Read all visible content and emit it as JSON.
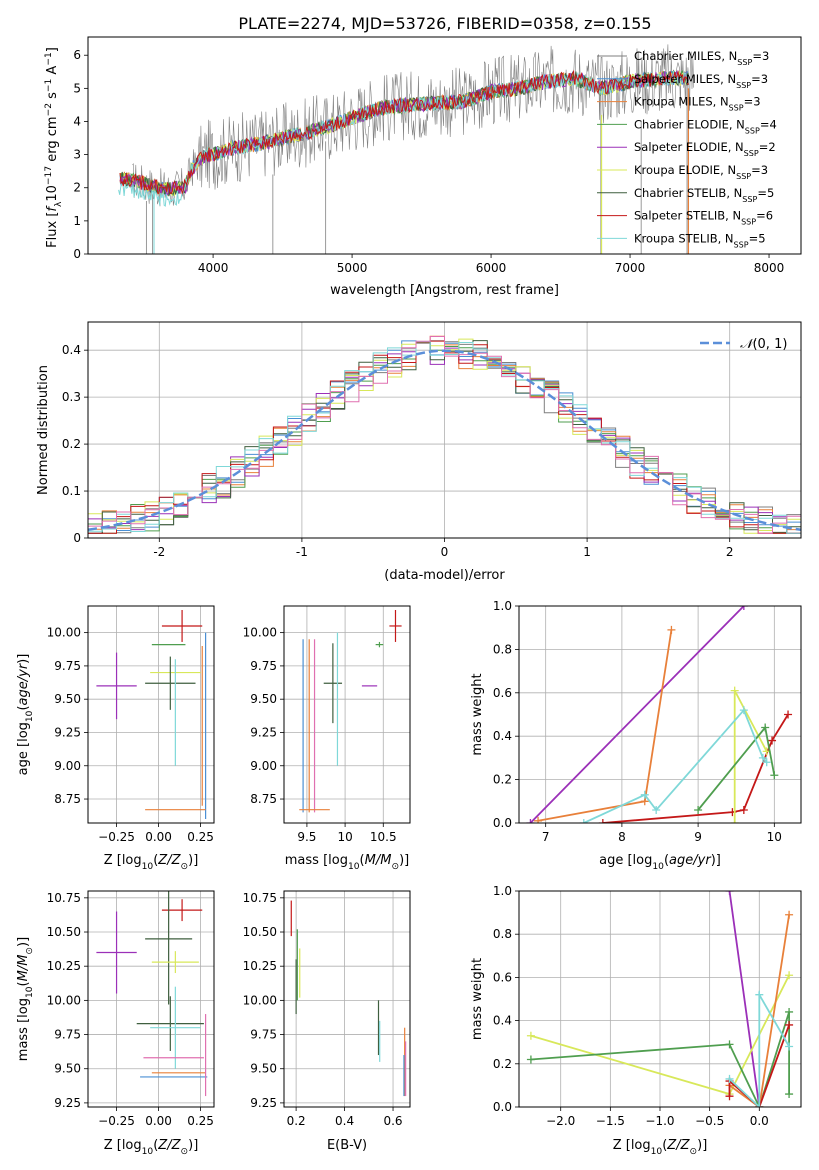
{
  "figure": {
    "title": "PLATE=2274, MJD=53726, FIBERID=0358, z=0.155"
  },
  "chart_data": [
    {
      "id": "spectrum",
      "type": "line",
      "xlabel": "wavelength [Angstrom, rest frame]",
      "ylabel": "Flux [f_λ 10^-17 erg cm^-2 s^-1 A^-1]",
      "xlim": [
        3100,
        8230
      ],
      "ylim": [
        0,
        6.55
      ],
      "xticks": [
        4000,
        5000,
        6000,
        7000,
        8000
      ],
      "yticks": [
        0,
        1,
        2,
        3,
        4,
        5,
        6
      ],
      "grid": false,
      "legend_position": "top-right",
      "data_color": "#808080",
      "model_curve": {
        "x": [
          3300,
          3450,
          3600,
          3700,
          3800,
          3850,
          3950,
          4000,
          4150,
          4300,
          4500,
          4700,
          4862,
          5000,
          5200,
          5400,
          5600,
          5800,
          6000,
          6200,
          6400,
          6600,
          6800,
          7000,
          7200,
          7400
        ],
        "y": [
          2.3,
          2.2,
          2.0,
          1.95,
          2.05,
          2.6,
          3.0,
          3.0,
          3.2,
          3.3,
          3.5,
          3.7,
          3.9,
          4.1,
          4.4,
          4.5,
          4.55,
          4.6,
          4.9,
          5.0,
          5.2,
          5.3,
          5.0,
          5.2,
          5.3,
          5.3
        ]
      },
      "series": [
        {
          "name": "Chabrier MILES, N_SSP=3",
          "color": "#7f7f7f"
        },
        {
          "name": "Salpeter MILES, N_SSP=3",
          "color": "#4a8fd4"
        },
        {
          "name": "Kroupa MILES, N_SSP=3",
          "color": "#e8803a"
        },
        {
          "name": "Chabrier ELODIE, N_SSP=4",
          "color": "#4f9e4f"
        },
        {
          "name": "Salpeter ELODIE, N_SSP=2",
          "color": "#9b30b8"
        },
        {
          "name": "Kroupa ELODIE, N_SSP=3",
          "color": "#d8e85a"
        },
        {
          "name": "Chabrier STELIB, N_SSP=5",
          "color": "#3f5f3f"
        },
        {
          "name": "Salpeter STELIB, N_SSP=6",
          "color": "#c41818"
        },
        {
          "name": "Kroupa STELIB, N_SSP=5",
          "color": "#7fd8d8"
        }
      ],
      "legend_labels": [
        {
          "name": "Chabrier MILES, N",
          "sub": "SSP",
          "tail": "=3"
        },
        {
          "name": "Salpeter MILES, N",
          "sub": "SSP",
          "tail": "=3"
        },
        {
          "name": "Kroupa MILES, N",
          "sub": "SSP",
          "tail": "=3"
        },
        {
          "name": "Chabrier ELODIE, N",
          "sub": "SSP",
          "tail": "=4"
        },
        {
          "name": "Salpeter ELODIE, N",
          "sub": "SSP",
          "tail": "=2"
        },
        {
          "name": "Kroupa ELODIE, N",
          "sub": "SSP",
          "tail": "=3"
        },
        {
          "name": "Chabrier STELIB, N",
          "sub": "SSP",
          "tail": "=5"
        },
        {
          "name": "Salpeter STELIB, N",
          "sub": "SSP",
          "tail": "=6"
        },
        {
          "name": "Kroupa STELIB, N",
          "sub": "SSP",
          "tail": "=5"
        }
      ]
    },
    {
      "id": "residuals",
      "type": "line",
      "xlabel": "(data-model)/error",
      "ylabel": "Normed distribution",
      "xlim": [
        -2.5,
        2.5
      ],
      "ylim": [
        0,
        0.46
      ],
      "xticks": [
        -2,
        -1,
        0,
        1,
        2
      ],
      "yticks": [
        0.0,
        0.1,
        0.2,
        0.3,
        0.4
      ],
      "grid": true,
      "legend_position": "top-right",
      "legend_label": "N(0,1)",
      "gaussian": {
        "mean": 0,
        "sigma": 1,
        "color": "#5b8fd9"
      },
      "bin_width": 0.1,
      "histogram_centers_first": -2.45
    },
    {
      "id": "age-vs-Z",
      "type": "scatter",
      "xlabel": "Z [log10(Z/Z⊙)]",
      "ylabel": "age [log10(age/yr)]",
      "xlim": [
        -0.42,
        0.33
      ],
      "ylim": [
        8.57,
        10.2
      ],
      "xticks": [
        -0.25,
        0.0,
        0.25
      ],
      "xtick_labels": [
        "−0.25",
        "0.00",
        "0.25"
      ],
      "yticks": [
        8.75,
        9.0,
        9.25,
        9.5,
        9.75,
        10.0
      ],
      "ytick_labels": [
        "8.75",
        "9.00",
        "9.25",
        "9.50",
        "9.75",
        "10.00"
      ],
      "grid": true,
      "points": [
        {
          "x": 0.14,
          "y": 10.05,
          "xerr": 0.12,
          "yerr": 0.12,
          "color": "#c41818"
        },
        {
          "x": 0.06,
          "y": 9.91,
          "xerr": 0.1,
          "yerr": 0.0,
          "color": "#4f9e4f"
        },
        {
          "x": 0.1,
          "y": 9.7,
          "xerr": 0.15,
          "yerr": 0.0,
          "color": "#d8e85a"
        },
        {
          "x": -0.25,
          "y": 9.6,
          "xerr": 0.12,
          "yerr": 0.25,
          "color": "#9b30b8"
        },
        {
          "x": 0.07,
          "y": 9.62,
          "xerr": 0.15,
          "yerr": 0.2,
          "color": "#3f5f3f"
        },
        {
          "x": 0.1,
          "y": 9.4,
          "xerr": 0.0,
          "yerr": 0.4,
          "color": "#7fd8d8"
        },
        {
          "x": 0.28,
          "y": 9.3,
          "xerr": 0.0,
          "yerr": 0.7,
          "color": "#4a8fd4"
        },
        {
          "x": 0.26,
          "y": 9.3,
          "xerr": 0.0,
          "yerr": 0.6,
          "color": "#e8803a"
        },
        {
          "x": 0.1,
          "y": 8.67,
          "xerr": 0.18,
          "yerr": 0.0,
          "color": "#e8803a"
        }
      ]
    },
    {
      "id": "age-vs-mass",
      "type": "scatter",
      "xlabel": "mass [log10(M/M⊙)]",
      "ylabel": "",
      "xlim": [
        9.2,
        10.85
      ],
      "ylim": [
        8.57,
        10.2
      ],
      "xticks": [
        9.5,
        10.0,
        10.5
      ],
      "yticks": [
        8.75,
        9.0,
        9.25,
        9.5,
        9.75,
        10.0
      ],
      "ytick_labels": [
        "8.75",
        "9.00",
        "9.25",
        "9.50",
        "9.75",
        "10.00"
      ],
      "grid": true,
      "points": [
        {
          "x": 10.66,
          "y": 10.05,
          "xerr": 0.08,
          "yerr": 0.12,
          "color": "#c41818"
        },
        {
          "x": 10.45,
          "y": 9.91,
          "xerr": 0.05,
          "yerr": 0.02,
          "color": "#4f9e4f"
        },
        {
          "x": 10.32,
          "y": 9.6,
          "xerr": 0.1,
          "yerr": 0.0,
          "color": "#9b30b8"
        },
        {
          "x": 9.84,
          "y": 9.62,
          "xerr": 0.12,
          "yerr": 0.3,
          "color": "#3f5f3f"
        },
        {
          "x": 9.9,
          "y": 9.5,
          "xerr": 0.0,
          "yerr": 0.5,
          "color": "#7fd8d8"
        },
        {
          "x": 9.45,
          "y": 9.3,
          "xerr": 0.0,
          "yerr": 0.65,
          "color": "#4a8fd4"
        },
        {
          "x": 9.53,
          "y": 9.3,
          "xerr": 0.0,
          "yerr": 0.65,
          "color": "#e8803a"
        },
        {
          "x": 9.6,
          "y": 9.3,
          "xerr": 0.0,
          "yerr": 0.65,
          "color": "#e070b0"
        },
        {
          "x": 9.6,
          "y": 8.67,
          "xerr": 0.2,
          "yerr": 0.0,
          "color": "#e8803a"
        }
      ]
    },
    {
      "id": "mass-weight-vs-age",
      "type": "line",
      "xlabel": "age [log10(age/yr)]",
      "ylabel": "mass weight",
      "xlim": [
        6.65,
        10.35
      ],
      "ylim": [
        0,
        1.0
      ],
      "xticks": [
        7,
        8,
        9,
        10
      ],
      "yticks": [
        0.0,
        0.2,
        0.4,
        0.6,
        0.8,
        1.0
      ],
      "ytick_labels": [
        "0.0",
        "0.2",
        "0.4",
        "0.6",
        "0.8",
        "1.0"
      ],
      "grid": true,
      "series": [
        {
          "color": "#9b30b8",
          "x": [
            6.8,
            9.6
          ],
          "y": [
            0.0,
            1.0
          ]
        },
        {
          "color": "#e8803a",
          "x": [
            6.9,
            8.3,
            8.65
          ],
          "y": [
            0.01,
            0.1,
            0.89
          ]
        },
        {
          "color": "#c41818",
          "x": [
            7.75,
            9.45,
            9.6,
            9.97,
            10.18
          ],
          "y": [
            0.0,
            0.05,
            0.06,
            0.38,
            0.5
          ]
        },
        {
          "color": "#d8e85a",
          "x": [
            9.48,
            9.48,
            9.9
          ],
          "y": [
            0.0,
            0.61,
            0.33
          ]
        },
        {
          "color": "#4f9e4f",
          "x": [
            9.0,
            9.88,
            10.0
          ],
          "y": [
            0.06,
            0.44,
            0.22
          ]
        },
        {
          "color": "#7fd8d8",
          "x": [
            7.5,
            8.3,
            8.45,
            9.6,
            9.85,
            9.9
          ],
          "y": [
            0.0,
            0.13,
            0.06,
            0.52,
            0.3,
            0.28
          ]
        }
      ]
    },
    {
      "id": "mass-vs-Z",
      "type": "scatter",
      "xlabel": "Z [log10(Z/Z⊙)]",
      "ylabel": "mass [log10(M/M⊙)]",
      "xlim": [
        -0.42,
        0.33
      ],
      "ylim": [
        9.22,
        10.8
      ],
      "xticks": [
        -0.25,
        0.0,
        0.25
      ],
      "xtick_labels": [
        "−0.25",
        "0.00",
        "0.25"
      ],
      "yticks": [
        9.25,
        9.5,
        9.75,
        10.0,
        10.25,
        10.5,
        10.75
      ],
      "ytick_labels": [
        "9.25",
        "9.50",
        "9.75",
        "10.00",
        "10.25",
        "10.50",
        "10.75"
      ],
      "grid": true,
      "points": [
        {
          "x": 0.14,
          "y": 10.66,
          "xerr": 0.12,
          "yerr": 0.08,
          "color": "#c41818"
        },
        {
          "x": 0.06,
          "y": 10.45,
          "xerr": 0.14,
          "yerr": 0.48,
          "color": "#3f5f3f"
        },
        {
          "x": -0.25,
          "y": 10.35,
          "xerr": 0.12,
          "yerr": 0.3,
          "color": "#9b30b8"
        },
        {
          "x": 0.1,
          "y": 10.28,
          "xerr": 0.14,
          "yerr": 0.08,
          "color": "#d8e85a"
        },
        {
          "x": 0.07,
          "y": 9.83,
          "xerr": 0.2,
          "yerr": 0.2,
          "color": "#3f5f3f"
        },
        {
          "x": 0.1,
          "y": 9.8,
          "xerr": 0.15,
          "yerr": 0.3,
          "color": "#7fd8d8"
        },
        {
          "x": 0.09,
          "y": 9.58,
          "xerr": 0.18,
          "yerr": 0.0,
          "color": "#e070b0"
        },
        {
          "x": 0.09,
          "y": 9.44,
          "xerr": 0.2,
          "yerr": 0.0,
          "color": "#4a8fd4"
        },
        {
          "x": 0.12,
          "y": 9.47,
          "xerr": 0.16,
          "yerr": 0.0,
          "color": "#e8803a"
        },
        {
          "x": 0.28,
          "y": 9.6,
          "xerr": 0.0,
          "yerr": 0.3,
          "color": "#e070b0"
        }
      ]
    },
    {
      "id": "mass-vs-EBV",
      "type": "scatter",
      "xlabel": "E(B-V)",
      "ylabel": "",
      "xlim": [
        0.15,
        0.67
      ],
      "ylim": [
        9.22,
        10.8
      ],
      "xticks": [
        0.2,
        0.4,
        0.6
      ],
      "xtick_labels": [
        "0.2",
        "0.4",
        "0.6"
      ],
      "yticks": [
        9.25,
        9.5,
        9.75,
        10.0,
        10.25,
        10.5,
        10.75
      ],
      "ytick_labels": [
        "9.25",
        "9.50",
        "9.75",
        "10.00",
        "10.25",
        "10.50",
        "10.75"
      ],
      "grid": true,
      "points": [
        {
          "x": 0.18,
          "y": 10.6,
          "xerr": 0.0,
          "yerr": 0.13,
          "color": "#c41818"
        },
        {
          "x": 0.205,
          "y": 10.26,
          "xerr": 0.0,
          "yerr": 0.26,
          "color": "#4f9e4f"
        },
        {
          "x": 0.2,
          "y": 10.1,
          "xerr": 0.0,
          "yerr": 0.2,
          "color": "#3f5f3f"
        },
        {
          "x": 0.215,
          "y": 10.2,
          "xerr": 0.0,
          "yerr": 0.18,
          "color": "#d8e85a"
        },
        {
          "x": 0.54,
          "y": 9.8,
          "xerr": 0.0,
          "yerr": 0.2,
          "color": "#3f5f3f"
        },
        {
          "x": 0.545,
          "y": 9.7,
          "xerr": 0.0,
          "yerr": 0.15,
          "color": "#7fd8d8"
        },
        {
          "x": 0.648,
          "y": 9.55,
          "xerr": 0.0,
          "yerr": 0.25,
          "color": "#e8803a"
        },
        {
          "x": 0.652,
          "y": 9.5,
          "xerr": 0.0,
          "yerr": 0.2,
          "color": "#e070b0"
        },
        {
          "x": 0.645,
          "y": 9.45,
          "xerr": 0.0,
          "yerr": 0.15,
          "color": "#4a8fd4"
        }
      ]
    },
    {
      "id": "mass-weight-vs-Z",
      "type": "line",
      "xlabel": "Z [log10(Z/Z⊙)]",
      "ylabel": "mass weight",
      "xlim": [
        -2.42,
        0.42
      ],
      "ylim": [
        0,
        1.0
      ],
      "xticks": [
        -2.0,
        -1.5,
        -1.0,
        -0.5,
        0.0
      ],
      "xtick_labels": [
        "−2.0",
        "−1.5",
        "−1.0",
        "−0.5",
        "0.0"
      ],
      "yticks": [
        0.0,
        0.2,
        0.4,
        0.6,
        0.8,
        1.0
      ],
      "ytick_labels": [
        "0.0",
        "0.2",
        "0.4",
        "0.6",
        "0.8",
        "1.0"
      ],
      "grid": true,
      "series": [
        {
          "color": "#9b30b8",
          "x": [
            -0.3,
            0.0
          ],
          "y": [
            1.0,
            0.0
          ]
        },
        {
          "color": "#d8e85a",
          "x": [
            -2.3,
            -0.3,
            0.3
          ],
          "y": [
            0.33,
            0.06,
            0.61
          ]
        },
        {
          "color": "#4f9e4f",
          "x": [
            -2.3,
            -0.3,
            0.0,
            0.3,
            0.3
          ],
          "y": [
            0.22,
            0.29,
            0.0,
            0.44,
            0.06
          ]
        },
        {
          "color": "#e8803a",
          "x": [
            -0.3,
            0.0,
            0.3
          ],
          "y": [
            0.1,
            0.0,
            0.89
          ]
        },
        {
          "color": "#c41818",
          "x": [
            -0.3,
            -0.3,
            0.0,
            0.3
          ],
          "y": [
            0.05,
            0.12,
            0.0,
            0.38
          ]
        },
        {
          "color": "#7fd8d8",
          "x": [
            -0.3,
            0.0,
            0.0,
            0.3
          ],
          "y": [
            0.13,
            0.0,
            0.52,
            0.28
          ]
        }
      ]
    }
  ]
}
